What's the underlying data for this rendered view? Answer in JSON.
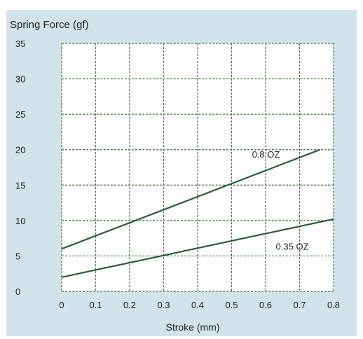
{
  "chart_data": {
    "type": "line",
    "ylabel": "Spring Force (gf)",
    "xlabel": "Stroke (mm)",
    "xlim": [
      0,
      0.8
    ],
    "ylim": [
      0,
      35
    ],
    "xticks": [
      "0",
      "0.1",
      "0.2",
      "0.3",
      "0.4",
      "0.5",
      "0.6",
      "0.7",
      "0.8"
    ],
    "yticks": [
      "0",
      "5",
      "10",
      "15",
      "20",
      "25",
      "30",
      "35"
    ],
    "grid": true,
    "series": [
      {
        "name": "0.8 OZ",
        "x": [
          0,
          0.76
        ],
        "y": [
          6,
          20
        ],
        "color": "#2e5a3a"
      },
      {
        "name": "0.35 OZ",
        "x": [
          0,
          0.8
        ],
        "y": [
          2,
          10.2
        ],
        "color": "#2e5a3a"
      }
    ],
    "colors": {
      "panel": "#d2e3ec",
      "plot": "#ffffff",
      "grid": "#3f7a3f"
    }
  }
}
